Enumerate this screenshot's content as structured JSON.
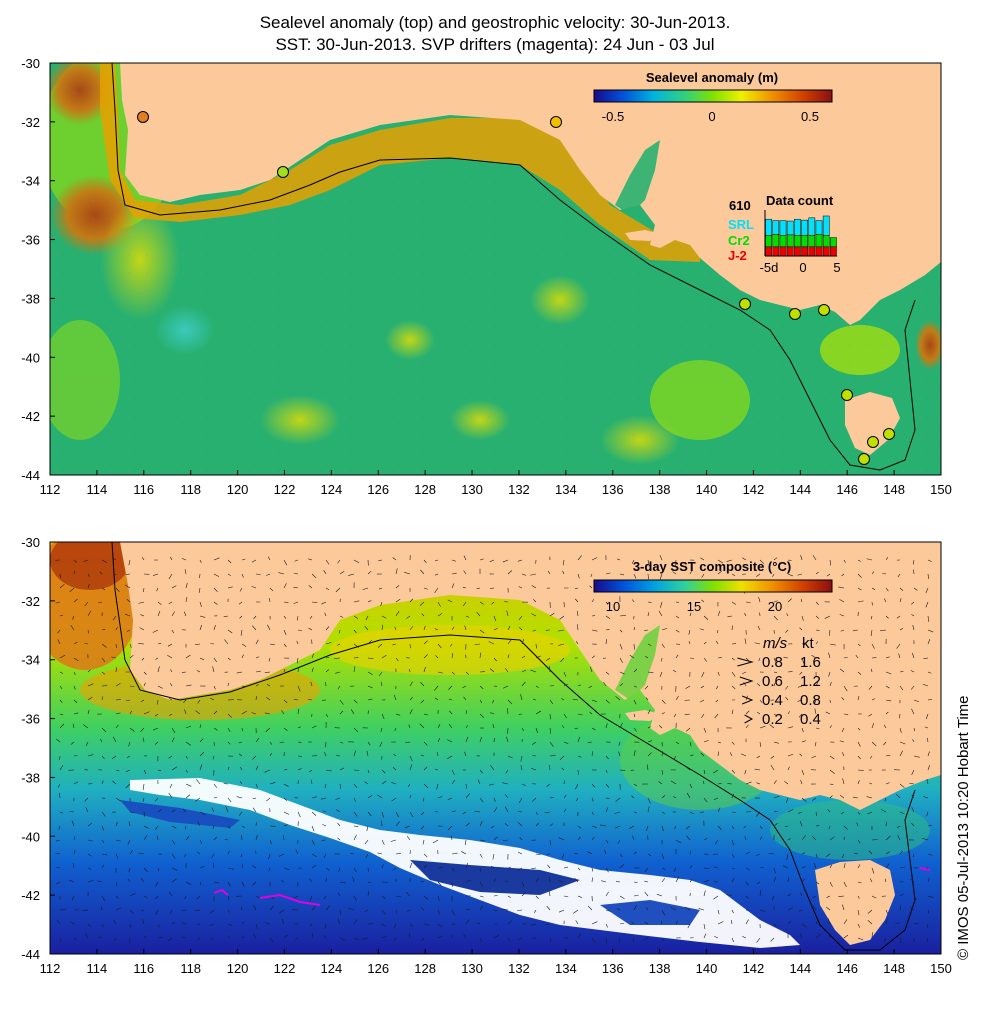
{
  "titles": {
    "line1": "Sealevel anomaly (top) and geostrophic velocity: 30-Jun-2013.",
    "line2": "SST: 30-Jun-2013. SVP drifters (magenta): 24 Jun - 03 Jul"
  },
  "axes": {
    "x_ticks": [
      "112",
      "114",
      "116",
      "118",
      "120",
      "122",
      "124",
      "126",
      "128",
      "130",
      "132",
      "134",
      "136",
      "138",
      "140",
      "142",
      "144",
      "146",
      "148",
      "150"
    ],
    "y_ticks": [
      "-30",
      "-32",
      "-34",
      "-36",
      "-38",
      "-40",
      "-42",
      "-44"
    ]
  },
  "top_panel": {
    "colorbar_title": "Sealevel anomaly (m)",
    "colorbar_ticks": [
      "-0.5",
      "0",
      "0.5"
    ],
    "colorbar_range": [
      -0.6,
      0.6
    ],
    "data_count": {
      "title": "Data count",
      "max": "610",
      "series": [
        "SRL",
        "Cr2",
        "J-2"
      ],
      "xticks": [
        "-5d",
        "0",
        "5"
      ],
      "series_colors": [
        "#00e0ff",
        "#00dd00",
        "#ee0000"
      ],
      "bars_srl": [
        0.35,
        0.3,
        0.32,
        0.3,
        0.35,
        0.33,
        0.38,
        0.3,
        0.42,
        0.0
      ],
      "bars_cr2": [
        0.25,
        0.27,
        0.25,
        0.26,
        0.25,
        0.25,
        0.25,
        0.27,
        0.25,
        0.2
      ],
      "bars_j2": [
        0.2,
        0.2,
        0.2,
        0.2,
        0.2,
        0.2,
        0.2,
        0.2,
        0.2,
        0.2
      ]
    }
  },
  "bottom_panel": {
    "colorbar_title": "3-day SST composite (°C)",
    "colorbar_ticks": [
      "10",
      "15",
      "20"
    ],
    "colorbar_range": [
      8,
      24
    ],
    "velocity_legend": {
      "header_ms": "m/s",
      "header_kt": "kt",
      "rows": [
        {
          "ms": "0.8",
          "kt": "1.6",
          "scale": 0.8
        },
        {
          "ms": "0.6",
          "kt": "1.2",
          "scale": 0.6
        },
        {
          "ms": "0.4",
          "kt": "0.8",
          "scale": 0.4
        },
        {
          "ms": "0.2",
          "kt": "0.4",
          "scale": 0.2
        }
      ]
    }
  },
  "colors": {
    "land": "#fcc99b",
    "sla_gradient": [
      "#1a0a8c",
      "#0050d8",
      "#00b4e0",
      "#30d080",
      "#80e000",
      "#f0f000",
      "#f09000",
      "#d04000",
      "#8a1010"
    ],
    "sst_gradient": [
      "#1a0a8c",
      "#0050d8",
      "#00a0e0",
      "#30d0a0",
      "#80e000",
      "#f0e000",
      "#f09000",
      "#d04000",
      "#8a1010"
    ],
    "drifter": "#e000e0"
  },
  "credit": "© IMOS 05-Jul-2013 10:20 Hobart Time"
}
